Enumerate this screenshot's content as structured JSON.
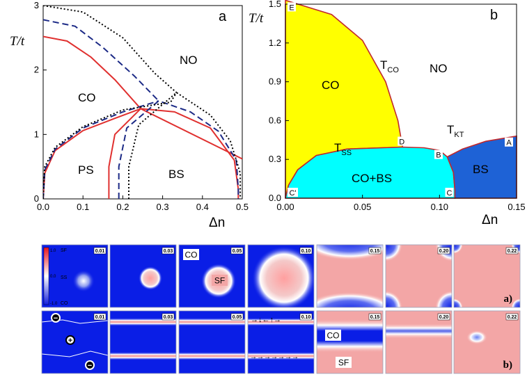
{
  "chart_data": [
    {
      "panel": "a",
      "type": "line",
      "ylabel": "T/t",
      "xlabel": "Δn",
      "xlim": [
        0,
        0.5
      ],
      "ylim": [
        0,
        3
      ],
      "xticks": [
        "0.0",
        "0.1",
        "0.2",
        "0.3",
        "0.4",
        "0.5"
      ],
      "yticks": [
        "0",
        "1",
        "2",
        "3"
      ],
      "region_labels": [
        "NO",
        "CO",
        "PS",
        "BS"
      ],
      "series": [
        {
          "style": "solid",
          "color": "#e0302f",
          "co_boundary": [
            [
              0,
              2.52
            ],
            [
              0.06,
              2.45
            ],
            [
              0.12,
              2.2
            ],
            [
              0.18,
              1.85
            ],
            [
              0.245,
              1.4
            ]
          ],
          "ps_boundary": [
            [
              0,
              0
            ],
            [
              0.004,
              0.4
            ],
            [
              0.03,
              0.75
            ],
            [
              0.1,
              1.06
            ],
            [
              0.18,
              1.25
            ],
            [
              0.245,
              1.4
            ]
          ],
          "bs_boundary": [
            [
              0.165,
              0
            ],
            [
              0.165,
              0.5
            ],
            [
              0.18,
              1.0
            ],
            [
              0.245,
              1.4
            ],
            [
              0.33,
              1.35
            ],
            [
              0.42,
              1.1
            ],
            [
              0.48,
              0.6
            ],
            [
              0.49,
              0.15
            ],
            [
              0.49,
              0
            ]
          ],
          "bs_upper": [
            [
              0.245,
              1.4
            ],
            [
              0.5,
              0.62
            ]
          ]
        },
        {
          "style": "dashed",
          "color": "#1c2a86",
          "co_boundary": [
            [
              0,
              2.78
            ],
            [
              0.08,
              2.68
            ],
            [
              0.15,
              2.35
            ],
            [
              0.23,
              1.9
            ],
            [
              0.29,
              1.52
            ]
          ],
          "ps_boundary": [
            [
              0,
              0
            ],
            [
              0.004,
              0.45
            ],
            [
              0.03,
              0.77
            ],
            [
              0.1,
              1.1
            ],
            [
              0.2,
              1.35
            ],
            [
              0.29,
              1.52
            ]
          ],
          "bs_boundary": [
            [
              0.19,
              0
            ],
            [
              0.19,
              0.5
            ],
            [
              0.21,
              1.1
            ],
            [
              0.29,
              1.52
            ],
            [
              0.37,
              1.35
            ],
            [
              0.44,
              1.05
            ],
            [
              0.485,
              0.6
            ],
            [
              0.49,
              0.15
            ],
            [
              0.49,
              0
            ]
          ]
        },
        {
          "style": "dotted",
          "color": "#000000",
          "co_boundary": [
            [
              0,
              3.0
            ],
            [
              0.1,
              2.9
            ],
            [
              0.2,
              2.5
            ],
            [
              0.28,
              1.95
            ],
            [
              0.335,
              1.65
            ]
          ],
          "ps_boundary": [
            [
              0,
              0
            ],
            [
              0.004,
              0.5
            ],
            [
              0.03,
              0.8
            ],
            [
              0.1,
              1.12
            ],
            [
              0.2,
              1.38
            ],
            [
              0.32,
              1.5
            ],
            [
              0.335,
              1.65
            ]
          ],
          "bs_boundary": [
            [
              0.215,
              0
            ],
            [
              0.215,
              0.5
            ],
            [
              0.24,
              1.15
            ],
            [
              0.335,
              1.65
            ],
            [
              0.42,
              1.3
            ],
            [
              0.47,
              0.9
            ],
            [
              0.495,
              0.4
            ],
            [
              0.495,
              0
            ]
          ]
        }
      ]
    },
    {
      "panel": "b",
      "type": "area",
      "ylabel": "T/t",
      "xlabel": "Δn",
      "xlim": [
        0,
        0.15
      ],
      "ylim": [
        0,
        1.5
      ],
      "xticks": [
        "0.00",
        "0.05",
        "0.10",
        "0.15"
      ],
      "yticks": [
        "0.0",
        "0.3",
        "0.6",
        "0.9",
        "1.2",
        "1.5"
      ],
      "region_labels": [
        "CO",
        "NO",
        "CO+BS",
        "BS"
      ],
      "curve_labels": {
        "tco": "T",
        "tco_sub": "CO",
        "tss": "T",
        "tss_sub": "SS",
        "tkt": "T",
        "tkt_sub": "KT"
      },
      "point_labels": [
        "E",
        "C'",
        "D",
        "B",
        "C",
        "A"
      ],
      "colors": {
        "CO": "#ffff00",
        "CO+BS": "#00ffff",
        "BS": "#1e62d6",
        "boundary": "#c0282d"
      },
      "regions": {
        "CO": [
          [
            0,
            1.53
          ],
          [
            0.03,
            1.42
          ],
          [
            0.05,
            1.22
          ],
          [
            0.065,
            0.9
          ],
          [
            0.073,
            0.6
          ],
          [
            0.076,
            0.395
          ],
          [
            0.04,
            0.38
          ],
          [
            0.02,
            0.33
          ],
          [
            0.008,
            0.22
          ],
          [
            0.002,
            0.1
          ],
          [
            0,
            0
          ]
        ],
        "CO+BS": [
          [
            0,
            0
          ],
          [
            0.002,
            0.1
          ],
          [
            0.008,
            0.22
          ],
          [
            0.02,
            0.33
          ],
          [
            0.04,
            0.38
          ],
          [
            0.076,
            0.395
          ],
          [
            0.09,
            0.39
          ],
          [
            0.1,
            0.37
          ],
          [
            0.105,
            0.32
          ],
          [
            0.109,
            0.2
          ],
          [
            0.11,
            0.06
          ],
          [
            0.11,
            0
          ]
        ],
        "BS": [
          [
            0.11,
            0
          ],
          [
            0.11,
            0.06
          ],
          [
            0.109,
            0.2
          ],
          [
            0.105,
            0.32
          ],
          [
            0.115,
            0.38
          ],
          [
            0.13,
            0.44
          ],
          [
            0.15,
            0.48
          ],
          [
            0.15,
            0
          ]
        ]
      },
      "points": {
        "E": [
          0,
          1.53
        ],
        "C'": [
          0,
          0
        ],
        "D": [
          0.076,
          0.395
        ],
        "B": [
          0.103,
          0.33
        ],
        "C": [
          0.11,
          0
        ],
        "A": [
          0.15,
          0.48
        ]
      }
    }
  ],
  "simulations": {
    "colorbar": {
      "top": "1.0",
      "top_name": "SF",
      "mid": "0.0",
      "mid_name": "SS",
      "bottom": "-1.0",
      "bottom_name": "CO"
    },
    "row_a": {
      "tag": "a)",
      "panels": [
        {
          "value": "0.01",
          "label1": "",
          "label2": ""
        },
        {
          "value": "0.03",
          "label1": "",
          "label2": ""
        },
        {
          "value": "0.05",
          "label1": "CO",
          "label2": "SF"
        },
        {
          "value": "0.10",
          "label1": "",
          "label2": ""
        },
        {
          "value": "0.15",
          "label1": "",
          "label2": ""
        },
        {
          "value": "0.20",
          "label1": "",
          "label2": ""
        },
        {
          "value": "0.22",
          "label1": "",
          "label2": ""
        }
      ]
    },
    "row_b": {
      "tag": "b)",
      "panels": [
        {
          "value": "0.01",
          "signs": [
            "−",
            "+",
            "−"
          ]
        },
        {
          "value": "0.03"
        },
        {
          "value": "0.05"
        },
        {
          "value": "0.10",
          "arrows_top": "→↓←↑→",
          "arrows_bottom": "→→→→→→→"
        },
        {
          "value": "0.15",
          "label1": "CO",
          "label2": "SF"
        },
        {
          "value": "0.20"
        },
        {
          "value": "0.22"
        }
      ]
    }
  }
}
